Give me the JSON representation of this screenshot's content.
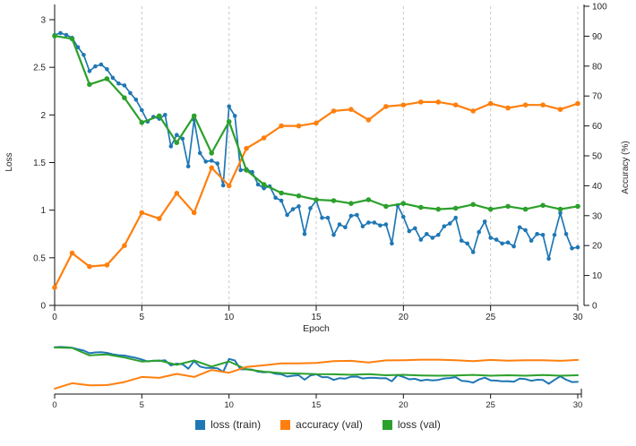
{
  "chart_data": {
    "type": "line",
    "title": "",
    "xlabel": "Epoch",
    "ylabel_left": "Loss",
    "ylabel_right": "Accuracy (%)",
    "x_range": [
      0,
      30
    ],
    "y_left_range": [
      0,
      3
    ],
    "y_right_range": [
      0,
      100
    ],
    "x_ticks": [
      0,
      5,
      10,
      15,
      20,
      25,
      30
    ],
    "y_left_ticks": [
      0,
      0.5,
      1,
      1.5,
      2,
      2.5,
      3
    ],
    "y_right_ticks": [
      0,
      10,
      20,
      30,
      40,
      50,
      60,
      70,
      80,
      90,
      100
    ],
    "grid": {
      "vertical_dashed_at": [
        5,
        10,
        15,
        20,
        25,
        30
      ],
      "color": "#c8c8c8"
    },
    "series": [
      {
        "name": "loss (train)",
        "axis": "left",
        "color": "#1f77b4",
        "markers": true,
        "x_start": 0,
        "x_step": 0.33333,
        "values": [
          2.84,
          2.86,
          2.84,
          2.81,
          2.71,
          2.63,
          2.46,
          2.51,
          2.53,
          2.48,
          2.39,
          2.33,
          2.31,
          2.23,
          2.16,
          2.05,
          1.93,
          1.98,
          1.96,
          2.0,
          1.67,
          1.79,
          1.75,
          1.46,
          1.95,
          1.6,
          1.51,
          1.52,
          1.49,
          1.26,
          2.09,
          1.99,
          1.42,
          1.43,
          1.4,
          1.27,
          1.23,
          1.25,
          1.13,
          1.1,
          0.95,
          1.01,
          1.04,
          0.75,
          1.02,
          1.1,
          0.92,
          0.92,
          0.74,
          0.85,
          0.82,
          0.94,
          0.95,
          0.83,
          0.87,
          0.87,
          0.84,
          0.85,
          0.65,
          1.05,
          0.93,
          0.78,
          0.81,
          0.69,
          0.75,
          0.71,
          0.74,
          0.83,
          0.86,
          0.92,
          0.68,
          0.65,
          0.56,
          0.77,
          0.88,
          0.71,
          0.69,
          0.65,
          0.66,
          0.62,
          0.82,
          0.79,
          0.68,
          0.75,
          0.74,
          0.49,
          0.74,
          0.97,
          0.75,
          0.6,
          0.61
        ]
      },
      {
        "name": "accuracy (val)",
        "axis": "right",
        "color": "#ff7f0e",
        "markers": true,
        "x_start": 0,
        "x_step": 1,
        "values": [
          6,
          17.5,
          13,
          13.5,
          20,
          31,
          29,
          37.5,
          31,
          46,
          40,
          52.5,
          56,
          60,
          60,
          61,
          65,
          65.5,
          62,
          66.5,
          67,
          68,
          68,
          67,
          65,
          67.5,
          66,
          67,
          67,
          65.5,
          67.5
        ]
      },
      {
        "name": "loss (val)",
        "axis": "left",
        "color": "#2ca02c",
        "markers": true,
        "x_start": 0,
        "x_step": 1,
        "values": [
          2.83,
          2.8,
          2.32,
          2.38,
          2.18,
          1.92,
          1.99,
          1.71,
          1.99,
          1.6,
          1.93,
          1.42,
          1.27,
          1.18,
          1.15,
          1.11,
          1.1,
          1.07,
          1.11,
          1.04,
          1.07,
          1.03,
          1.01,
          1.02,
          1.06,
          1.01,
          1.04,
          1.01,
          1.05,
          1.01,
          1.04
        ]
      }
    ],
    "overview": {
      "description": "compact overview strip below main chart, same three series, no point markers",
      "x_ticks": [
        0,
        5,
        10,
        15,
        20,
        25,
        30
      ]
    },
    "legend": {
      "position": "bottom-center",
      "items": [
        {
          "label": "loss (train)",
          "color": "#1f77b4"
        },
        {
          "label": "accuracy (val)",
          "color": "#ff7f0e"
        },
        {
          "label": "loss (val)",
          "color": "#2ca02c"
        }
      ]
    },
    "text_color": "#262626",
    "axis_color": "#111111"
  }
}
